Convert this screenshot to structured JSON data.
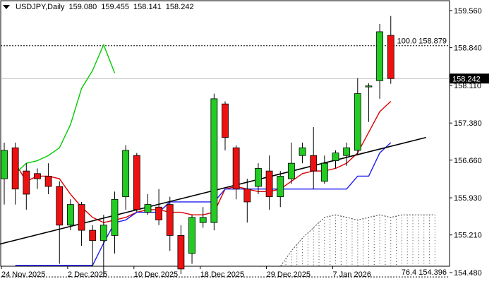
{
  "header": {
    "symbol_label": "USDJPY,Daily",
    "open": "159.080",
    "high": "159.455",
    "low": "158.141",
    "close": "158.242"
  },
  "current_price_label": "158.242",
  "fib_levels": [
    {
      "label": "100.0",
      "price_label": "158.879",
      "value": 158.879
    },
    {
      "label": "76.4",
      "price_label": "154.396",
      "value": 154.396
    }
  ],
  "current_price": 158.242,
  "chart_data": {
    "type": "candlestick",
    "title": "USDJPY,Daily",
    "y_ticks": [
      159.56,
      158.84,
      158.11,
      157.38,
      156.66,
      155.93,
      155.21,
      154.48
    ],
    "y_tick_labels": [
      "159.560",
      "158.840",
      "158.110",
      "157.380",
      "156.660",
      "155.930",
      "155.210",
      "154.480"
    ],
    "ylim": [
      154.25,
      159.75
    ],
    "x_labels": [
      {
        "label": "24 Nov 2025",
        "index": 0
      },
      {
        "label": "2 Dec 2025",
        "index": 6
      },
      {
        "label": "10 Dec 2025",
        "index": 12
      },
      {
        "label": "18 Dec 2025",
        "index": 18
      },
      {
        "label": "29 Dec 2025",
        "index": 24
      },
      {
        "label": "7 Jan 2026",
        "index": 30
      }
    ],
    "candles": [
      {
        "o": 156.3,
        "h": 157.0,
        "l": 155.8,
        "c": 156.85
      },
      {
        "o": 156.9,
        "h": 157.0,
        "l": 155.8,
        "c": 156.1
      },
      {
        "o": 156.45,
        "h": 156.6,
        "l": 155.7,
        "c": 156.0
      },
      {
        "o": 156.4,
        "h": 156.5,
        "l": 156.1,
        "c": 156.3
      },
      {
        "o": 156.35,
        "h": 156.6,
        "l": 156.0,
        "c": 156.15
      },
      {
        "o": 156.15,
        "h": 156.25,
        "l": 154.65,
        "c": 155.4
      },
      {
        "o": 155.4,
        "h": 155.9,
        "l": 155.3,
        "c": 155.8
      },
      {
        "o": 155.8,
        "h": 155.85,
        "l": 155.0,
        "c": 155.3
      },
      {
        "o": 155.3,
        "h": 155.4,
        "l": 154.6,
        "c": 155.1
      },
      {
        "o": 155.1,
        "h": 155.6,
        "l": 154.4,
        "c": 155.4
      },
      {
        "o": 155.2,
        "h": 156.05,
        "l": 154.85,
        "c": 155.9
      },
      {
        "o": 155.95,
        "h": 156.95,
        "l": 155.7,
        "c": 156.85
      },
      {
        "o": 156.75,
        "h": 156.8,
        "l": 155.65,
        "c": 155.7
      },
      {
        "o": 155.65,
        "h": 156.0,
        "l": 155.6,
        "c": 155.8
      },
      {
        "o": 155.75,
        "h": 156.1,
        "l": 155.4,
        "c": 155.5
      },
      {
        "o": 155.8,
        "h": 155.95,
        "l": 154.9,
        "c": 155.2
      },
      {
        "o": 155.2,
        "h": 155.4,
        "l": 154.45,
        "c": 154.55
      },
      {
        "o": 154.85,
        "h": 155.6,
        "l": 154.65,
        "c": 155.55
      },
      {
        "o": 155.45,
        "h": 155.75,
        "l": 155.35,
        "c": 155.55
      },
      {
        "o": 155.45,
        "h": 157.95,
        "l": 155.3,
        "c": 157.85
      },
      {
        "o": 157.75,
        "h": 157.8,
        "l": 156.85,
        "c": 157.1
      },
      {
        "o": 156.9,
        "h": 156.95,
        "l": 155.9,
        "c": 156.1
      },
      {
        "o": 156.1,
        "h": 156.3,
        "l": 155.45,
        "c": 155.85
      },
      {
        "o": 156.15,
        "h": 156.6,
        "l": 156.0,
        "c": 156.5
      },
      {
        "o": 156.45,
        "h": 156.75,
        "l": 155.7,
        "c": 155.95
      },
      {
        "o": 155.95,
        "h": 156.45,
        "l": 155.75,
        "c": 156.35
      },
      {
        "o": 156.3,
        "h": 157.0,
        "l": 156.2,
        "c": 156.6
      },
      {
        "o": 156.75,
        "h": 157.0,
        "l": 156.6,
        "c": 156.9
      },
      {
        "o": 156.75,
        "h": 157.3,
        "l": 156.1,
        "c": 156.45
      },
      {
        "o": 156.25,
        "h": 156.75,
        "l": 156.2,
        "c": 156.6
      },
      {
        "o": 156.65,
        "h": 156.85,
        "l": 156.5,
        "c": 156.8
      },
      {
        "o": 156.75,
        "h": 157.0,
        "l": 156.55,
        "c": 156.9
      },
      {
        "o": 156.85,
        "h": 158.25,
        "l": 156.75,
        "c": 157.95
      },
      {
        "o": 158.1,
        "h": 158.15,
        "l": 157.4,
        "c": 158.1
      },
      {
        "o": 158.2,
        "h": 159.3,
        "l": 157.85,
        "c": 159.15
      },
      {
        "o": 159.08,
        "h": 159.455,
        "l": 158.141,
        "c": 158.242
      }
    ],
    "series": [
      {
        "color": "#dd0000",
        "values": [
          null,
          156.6,
          156.25,
          156.35,
          156.35,
          156.3,
          156.0,
          155.75,
          155.55,
          155.45,
          155.5,
          155.55,
          155.65,
          155.7,
          155.7,
          155.65,
          155.65,
          155.6,
          155.6,
          155.65,
          156.1,
          156.15,
          156.1,
          156.05,
          156.05,
          156.1,
          156.25,
          156.4,
          156.45,
          156.45,
          156.5,
          156.6,
          156.8,
          157.2,
          157.6,
          157.8
        ]
      },
      {
        "color": "#1e1ef0",
        "values": [
          null,
          154.62,
          154.62,
          154.62,
          154.62,
          154.62,
          154.62,
          154.62,
          154.62,
          155.05,
          155.45,
          155.5,
          155.65,
          155.65,
          155.65,
          155.85,
          155.85,
          155.85,
          155.85,
          155.85,
          156.1,
          156.1,
          156.1,
          156.1,
          156.1,
          156.1,
          156.1,
          156.1,
          156.1,
          156.1,
          156.1,
          156.1,
          156.35,
          156.35,
          156.8,
          157.0
        ]
      },
      {
        "color": "#00cc00",
        "values": [
          null,
          156.4,
          156.6,
          156.65,
          156.75,
          156.9,
          157.35,
          158.05,
          158.4,
          158.9,
          158.35,
          null,
          null,
          null,
          null,
          null,
          null,
          null,
          null,
          null,
          null,
          null,
          null,
          null,
          null,
          null,
          null,
          null,
          null,
          null,
          null,
          null,
          null,
          null,
          null,
          null
        ]
      },
      {
        "color": "#000000",
        "start": {
          "i": -1,
          "v": 155.0
        },
        "end": {
          "i": 38.2,
          "v": 157.1
        }
      }
    ],
    "cloud_upper": [
      null,
      null,
      null,
      null,
      null,
      null,
      null,
      null,
      null,
      null,
      null,
      null,
      null,
      null,
      null,
      null,
      null,
      null,
      null,
      null,
      null,
      null,
      null,
      154.6,
      154.6,
      154.6,
      154.9,
      155.15,
      155.35,
      155.55,
      155.6,
      155.55,
      155.5,
      155.55,
      155.6,
      155.55,
      155.6,
      155.6,
      155.6,
      155.6
    ]
  }
}
